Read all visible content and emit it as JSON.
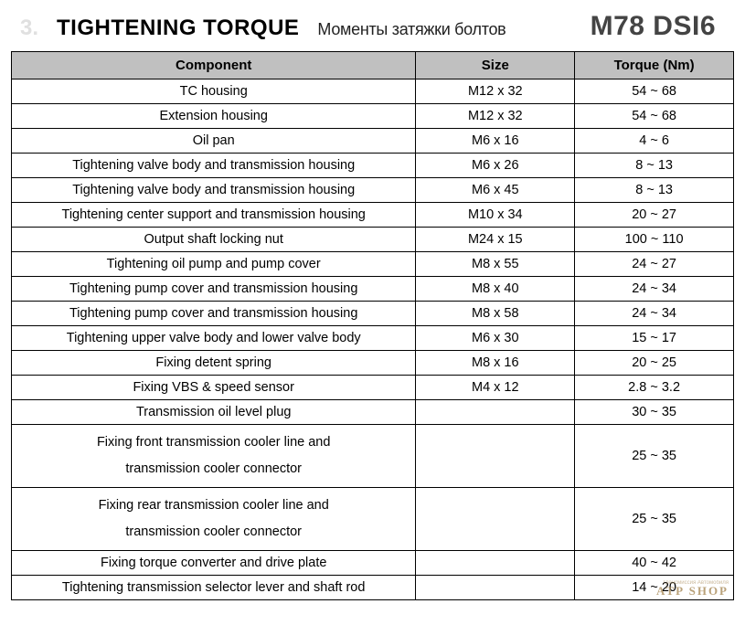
{
  "header": {
    "section_num": "3.",
    "title": "TIGHTENING TORQUE",
    "subtitle": "Моменты затяжки болтов",
    "model": "M78 DSI6"
  },
  "table": {
    "headers": {
      "component": "Component",
      "size": "Size",
      "torque": "Torque (Nm)"
    },
    "rows": [
      {
        "component": "TC housing",
        "size": "M12 x 32",
        "torque": "54 ~ 68"
      },
      {
        "component": "Extension housing",
        "size": "M12 x 32",
        "torque": "54 ~ 68"
      },
      {
        "component": "Oil pan",
        "size": "M6 x 16",
        "torque": "4 ~ 6"
      },
      {
        "component": "Tightening valve body and transmission housing",
        "size": "M6 x 26",
        "torque": "8 ~ 13"
      },
      {
        "component": "Tightening valve body and transmission housing",
        "size": "M6 x 45",
        "torque": "8 ~ 13"
      },
      {
        "component": "Tightening center support and transmission housing",
        "size": "M10 x 34",
        "torque": "20 ~ 27"
      },
      {
        "component": "Output shaft locking nut",
        "size": "M24 x 15",
        "torque": "100 ~ 110"
      },
      {
        "component": "Tightening oil pump and pump cover",
        "size": "M8 x 55",
        "torque": "24 ~ 27"
      },
      {
        "component": "Tightening pump cover and transmission housing",
        "size": "M8 x 40",
        "torque": "24 ~ 34"
      },
      {
        "component": "Tightening pump cover and transmission housing",
        "size": "M8 x 58",
        "torque": "24 ~ 34"
      },
      {
        "component": "Tightening upper valve body and lower valve body",
        "size": "M6 x 30",
        "torque": "15 ~ 17"
      },
      {
        "component": "Fixing detent spring",
        "size": "M8 x 16",
        "torque": "20 ~ 25"
      },
      {
        "component": "Fixing VBS & speed sensor",
        "size": "M4 x 12",
        "torque": "2.8 ~ 3.2"
      },
      {
        "component": "Transmission oil level plug",
        "size": "",
        "torque": "30 ~ 35"
      },
      {
        "component": "Fixing front transmission cooler line and\ntransmission cooler connector",
        "size": "",
        "torque": "25 ~ 35",
        "multiline": true
      },
      {
        "component": "Fixing rear transmission cooler line and\ntransmission cooler connector",
        "size": "",
        "torque": "25 ~ 35",
        "multiline": true
      },
      {
        "component": "Fixing torque converter and drive plate",
        "size": "",
        "torque": "40 ~ 42"
      },
      {
        "component": "Tightening transmission selector lever and shaft rod",
        "size": "",
        "torque": "14 ~ 20"
      }
    ]
  },
  "watermark": {
    "main": "ATP SHOP",
    "sub": "Трансмиссия Автомобиля"
  },
  "style": {
    "header_bg": "#c0c0c0",
    "border_color": "#000000",
    "body_bg": "#ffffff",
    "title_fontsize": 24,
    "model_fontsize": 30,
    "cell_fontsize": 14.5,
    "header_fontsize": 15
  }
}
